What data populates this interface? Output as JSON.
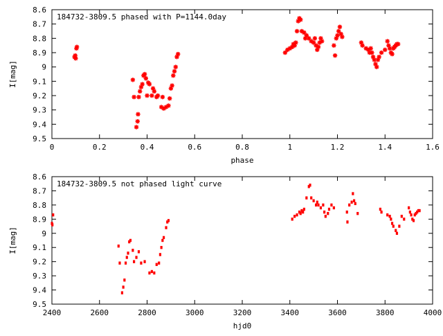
{
  "chart_data": [
    {
      "type": "scatter",
      "title": "184732-3809.5 phased with P=1144.0day",
      "xlabel": "phase",
      "ylabel": "I[mag]",
      "xlim": [
        0,
        1.6
      ],
      "ylim": [
        9.5,
        8.6
      ],
      "y_inverted": true,
      "grid": false,
      "marker": "red-star",
      "xticks": [
        "0",
        "0.2",
        "0.4",
        "0.6",
        "0.8",
        "1",
        "1.2",
        "1.4",
        "1.6"
      ],
      "yticks": [
        "8.6",
        "8.7",
        "8.8",
        "8.9",
        "9",
        "9.1",
        "9.2",
        "9.3",
        "9.4",
        "9.5"
      ],
      "points": [
        [
          0.095,
          8.93
        ],
        [
          0.098,
          8.92
        ],
        [
          0.1,
          8.94
        ],
        [
          0.103,
          8.87
        ],
        [
          0.105,
          8.86
        ],
        [
          0.34,
          9.09
        ],
        [
          0.345,
          9.21
        ],
        [
          0.355,
          9.42
        ],
        [
          0.36,
          9.38
        ],
        [
          0.362,
          9.33
        ],
        [
          0.365,
          9.21
        ],
        [
          0.37,
          9.17
        ],
        [
          0.375,
          9.14
        ],
        [
          0.38,
          9.12
        ],
        [
          0.385,
          9.06
        ],
        [
          0.39,
          9.05
        ],
        [
          0.395,
          9.08
        ],
        [
          0.4,
          9.2
        ],
        [
          0.405,
          9.11
        ],
        [
          0.41,
          9.12
        ],
        [
          0.42,
          9.2
        ],
        [
          0.425,
          9.15
        ],
        [
          0.43,
          9.17
        ],
        [
          0.44,
          9.21
        ],
        [
          0.445,
          9.2
        ],
        [
          0.46,
          9.28
        ],
        [
          0.465,
          9.21
        ],
        [
          0.47,
          9.29
        ],
        [
          0.48,
          9.28
        ],
        [
          0.49,
          9.27
        ],
        [
          0.495,
          9.22
        ],
        [
          0.5,
          9.15
        ],
        [
          0.505,
          9.13
        ],
        [
          0.51,
          9.06
        ],
        [
          0.515,
          9.03
        ],
        [
          0.52,
          9.0
        ],
        [
          0.525,
          8.93
        ],
        [
          0.53,
          8.91
        ],
        [
          0.98,
          8.9
        ],
        [
          0.99,
          8.88
        ],
        [
          1.0,
          8.87
        ],
        [
          1.01,
          8.86
        ],
        [
          1.015,
          8.84
        ],
        [
          1.02,
          8.85
        ],
        [
          1.025,
          8.83
        ],
        [
          1.03,
          8.75
        ],
        [
          1.035,
          8.68
        ],
        [
          1.04,
          8.66
        ],
        [
          1.045,
          8.67
        ],
        [
          1.05,
          8.75
        ],
        [
          1.06,
          8.76
        ],
        [
          1.065,
          8.8
        ],
        [
          1.07,
          8.78
        ],
        [
          1.08,
          8.8
        ],
        [
          1.09,
          8.82
        ],
        [
          1.1,
          8.83
        ],
        [
          1.105,
          8.8
        ],
        [
          1.11,
          8.85
        ],
        [
          1.115,
          8.88
        ],
        [
          1.12,
          8.86
        ],
        [
          1.125,
          8.83
        ],
        [
          1.13,
          8.8
        ],
        [
          1.135,
          8.82
        ],
        [
          1.185,
          8.85
        ],
        [
          1.19,
          8.92
        ],
        [
          1.195,
          8.8
        ],
        [
          1.2,
          8.78
        ],
        [
          1.205,
          8.75
        ],
        [
          1.21,
          8.72
        ],
        [
          1.215,
          8.77
        ],
        [
          1.22,
          8.79
        ],
        [
          1.3,
          8.83
        ],
        [
          1.305,
          8.85
        ],
        [
          1.32,
          8.87
        ],
        [
          1.33,
          8.88
        ],
        [
          1.335,
          8.9
        ],
        [
          1.34,
          8.87
        ],
        [
          1.345,
          8.9
        ],
        [
          1.35,
          8.93
        ],
        [
          1.355,
          8.95
        ],
        [
          1.36,
          8.98
        ],
        [
          1.365,
          9.0
        ],
        [
          1.37,
          8.95
        ],
        [
          1.375,
          8.93
        ],
        [
          1.385,
          8.9
        ],
        [
          1.4,
          8.88
        ],
        [
          1.41,
          8.82
        ],
        [
          1.415,
          8.85
        ],
        [
          1.42,
          8.87
        ],
        [
          1.425,
          8.9
        ],
        [
          1.43,
          8.91
        ],
        [
          1.435,
          8.87
        ],
        [
          1.44,
          8.86
        ],
        [
          1.445,
          8.85
        ],
        [
          1.45,
          8.84
        ],
        [
          1.455,
          8.84
        ]
      ]
    },
    {
      "type": "scatter",
      "title": "184732-3809.5 not phased light curve",
      "xlabel": "hjd0",
      "ylabel": "I[mag]",
      "xlim": [
        2400,
        4000
      ],
      "ylim": [
        9.5,
        8.6
      ],
      "y_inverted": true,
      "grid": false,
      "marker": "red-dot",
      "xticks": [
        "2400",
        "2600",
        "2800",
        "3000",
        "3200",
        "3400",
        "3600",
        "3800",
        "4000"
      ],
      "yticks": [
        "8.6",
        "8.7",
        "8.8",
        "8.9",
        "9",
        "9.1",
        "9.2",
        "9.3",
        "9.4",
        "9.5"
      ],
      "points": [
        [
          2400,
          8.93
        ],
        [
          2402,
          8.94
        ],
        [
          2405,
          8.87
        ],
        [
          2680,
          9.09
        ],
        [
          2685,
          9.21
        ],
        [
          2695,
          9.42
        ],
        [
          2700,
          9.38
        ],
        [
          2705,
          9.33
        ],
        [
          2710,
          9.21
        ],
        [
          2715,
          9.17
        ],
        [
          2720,
          9.14
        ],
        [
          2725,
          9.06
        ],
        [
          2730,
          9.05
        ],
        [
          2740,
          9.12
        ],
        [
          2745,
          9.2
        ],
        [
          2755,
          9.17
        ],
        [
          2765,
          9.13
        ],
        [
          2775,
          9.21
        ],
        [
          2790,
          9.2
        ],
        [
          2810,
          9.28
        ],
        [
          2820,
          9.27
        ],
        [
          2830,
          9.28
        ],
        [
          2840,
          9.22
        ],
        [
          2850,
          9.21
        ],
        [
          2855,
          9.15
        ],
        [
          2860,
          9.1
        ],
        [
          2865,
          9.05
        ],
        [
          2870,
          9.03
        ],
        [
          2880,
          8.96
        ],
        [
          2885,
          8.92
        ],
        [
          2890,
          8.91
        ],
        [
          3410,
          8.9
        ],
        [
          3420,
          8.88
        ],
        [
          3430,
          8.87
        ],
        [
          3440,
          8.85
        ],
        [
          3445,
          8.86
        ],
        [
          3450,
          8.84
        ],
        [
          3455,
          8.85
        ],
        [
          3460,
          8.83
        ],
        [
          3470,
          8.75
        ],
        [
          3480,
          8.67
        ],
        [
          3485,
          8.66
        ],
        [
          3490,
          8.75
        ],
        [
          3500,
          8.77
        ],
        [
          3510,
          8.8
        ],
        [
          3515,
          8.78
        ],
        [
          3520,
          8.8
        ],
        [
          3530,
          8.82
        ],
        [
          3540,
          8.8
        ],
        [
          3545,
          8.85
        ],
        [
          3550,
          8.88
        ],
        [
          3560,
          8.86
        ],
        [
          3565,
          8.83
        ],
        [
          3575,
          8.8
        ],
        [
          3585,
          8.82
        ],
        [
          3640,
          8.85
        ],
        [
          3642,
          8.92
        ],
        [
          3650,
          8.8
        ],
        [
          3660,
          8.78
        ],
        [
          3665,
          8.72
        ],
        [
          3670,
          8.77
        ],
        [
          3675,
          8.79
        ],
        [
          3685,
          8.86
        ],
        [
          3780,
          8.83
        ],
        [
          3785,
          8.85
        ],
        [
          3810,
          8.87
        ],
        [
          3820,
          8.88
        ],
        [
          3825,
          8.9
        ],
        [
          3830,
          8.93
        ],
        [
          3835,
          8.95
        ],
        [
          3845,
          8.98
        ],
        [
          3850,
          9.0
        ],
        [
          3860,
          8.95
        ],
        [
          3870,
          8.88
        ],
        [
          3880,
          8.9
        ],
        [
          3900,
          8.82
        ],
        [
          3905,
          8.85
        ],
        [
          3910,
          8.87
        ],
        [
          3915,
          8.9
        ],
        [
          3920,
          8.91
        ],
        [
          3925,
          8.87
        ],
        [
          3930,
          8.86
        ],
        [
          3935,
          8.85
        ],
        [
          3940,
          8.84
        ],
        [
          3945,
          8.84
        ]
      ]
    }
  ],
  "colors": {
    "marker": "#ff0000",
    "axis": "#000000",
    "background": "#ffffff"
  }
}
